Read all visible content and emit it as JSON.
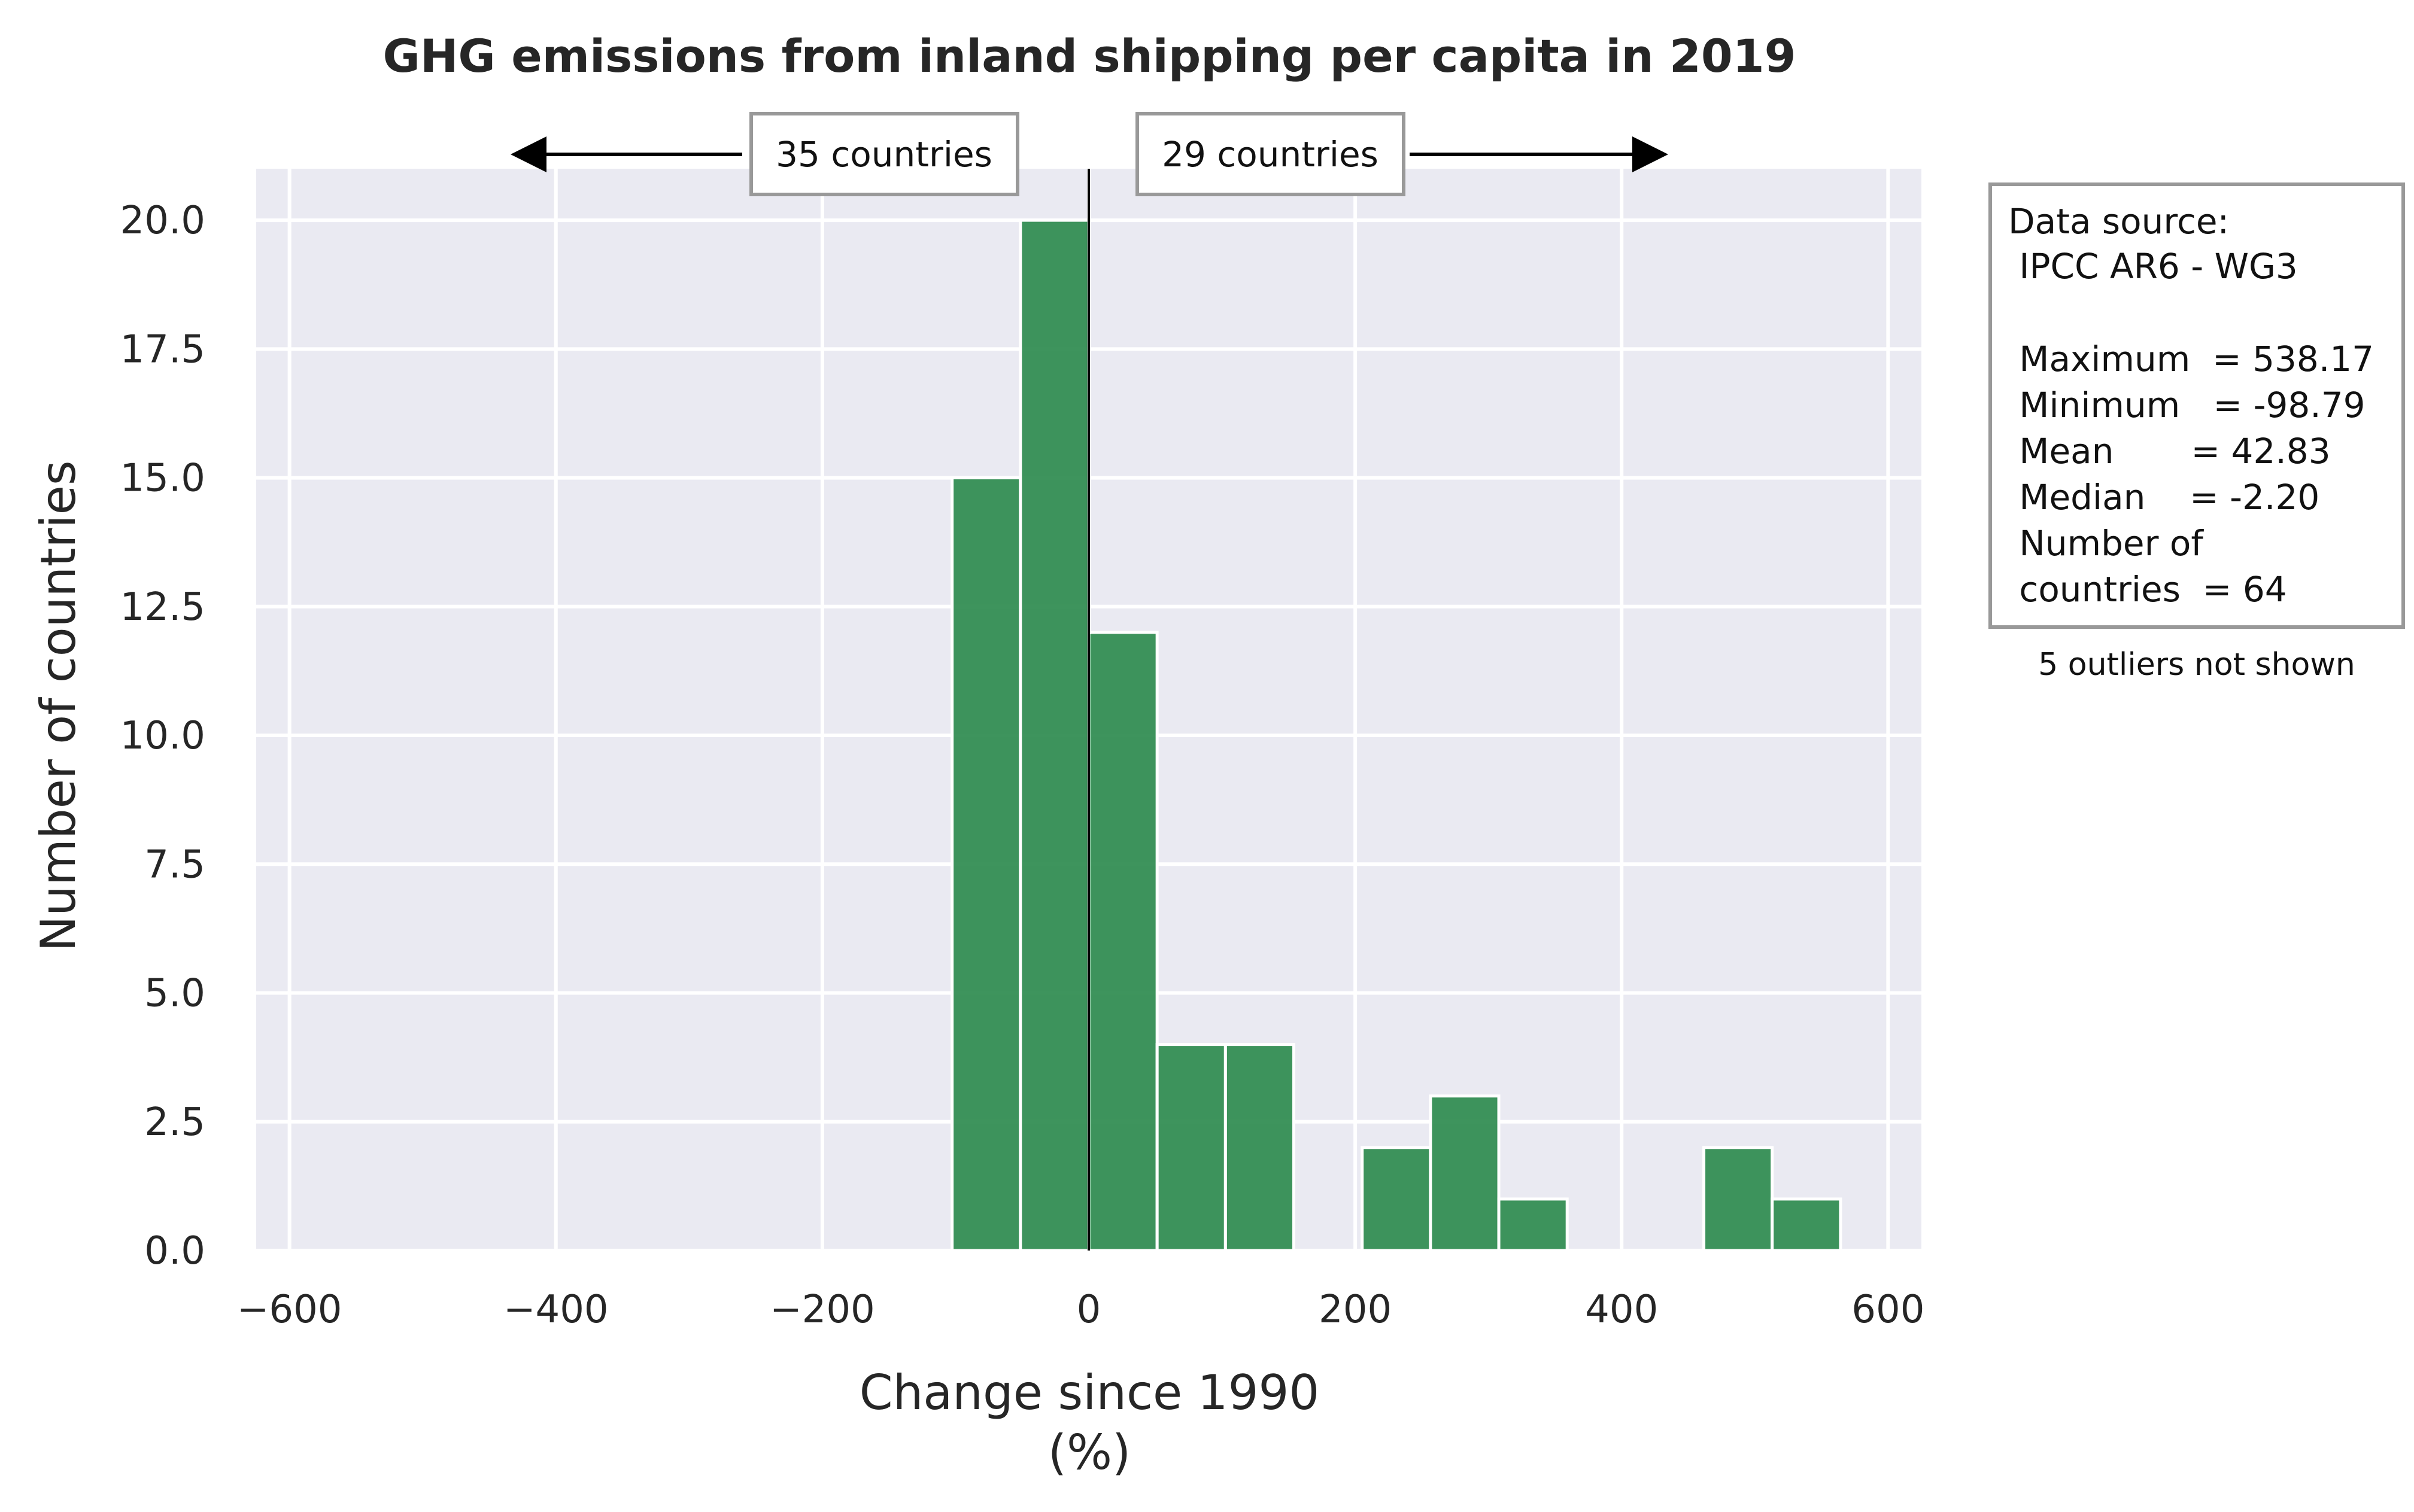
{
  "chart_data": {
    "type": "bar",
    "title": "GHG emissions from inland shipping per capita in 2019",
    "xlabel": "Change since 1990",
    "xlabel_unit": "(%)",
    "ylabel": "Number of countries",
    "xlim": [
      -625,
      625
    ],
    "ylim": [
      0,
      21
    ],
    "xticks": [
      -600,
      -400,
      -200,
      0,
      200,
      400,
      600
    ],
    "xtick_labels": [
      "−600",
      "−400",
      "−200",
      "0",
      "200",
      "400",
      "600"
    ],
    "yticks": [
      0,
      2.5,
      5,
      7.5,
      10,
      12.5,
      15,
      17.5,
      20
    ],
    "ytick_labels": [
      "0.0",
      "2.5",
      "5.0",
      "7.5",
      "10.0",
      "12.5",
      "15.0",
      "17.5",
      "20.0"
    ],
    "grid": true,
    "bar_color": "#2e8b4f",
    "background_color": "#eaeaf2",
    "bins": [
      {
        "x0": -102.6,
        "x1": -51.3,
        "count": 15
      },
      {
        "x0": -51.3,
        "x1": 0,
        "count": 20
      },
      {
        "x0": 0,
        "x1": 51.3,
        "count": 12
      },
      {
        "x0": 51.3,
        "x1": 102.6,
        "count": 4
      },
      {
        "x0": 102.6,
        "x1": 153.9,
        "count": 4
      },
      {
        "x0": 205.2,
        "x1": 256.5,
        "count": 2
      },
      {
        "x0": 256.5,
        "x1": 307.8,
        "count": 3
      },
      {
        "x0": 307.8,
        "x1": 359.1,
        "count": 1
      },
      {
        "x0": 461.7,
        "x1": 513.0,
        "count": 2
      },
      {
        "x0": 513.0,
        "x1": 564.3,
        "count": 1
      }
    ],
    "annotations": {
      "left_count": "35 countries",
      "right_count": "29 countries",
      "reference_line_x": 0
    }
  },
  "info_box": {
    "lines": [
      "Data source:",
      " IPCC AR6 - WG3",
      "",
      " Maximum  = 538.17",
      " Minimum   = -98.79",
      " Mean       = 42.83",
      " Median    = -2.20",
      " Number of",
      " countries  = 64"
    ],
    "note": "5 outliers not shown"
  }
}
